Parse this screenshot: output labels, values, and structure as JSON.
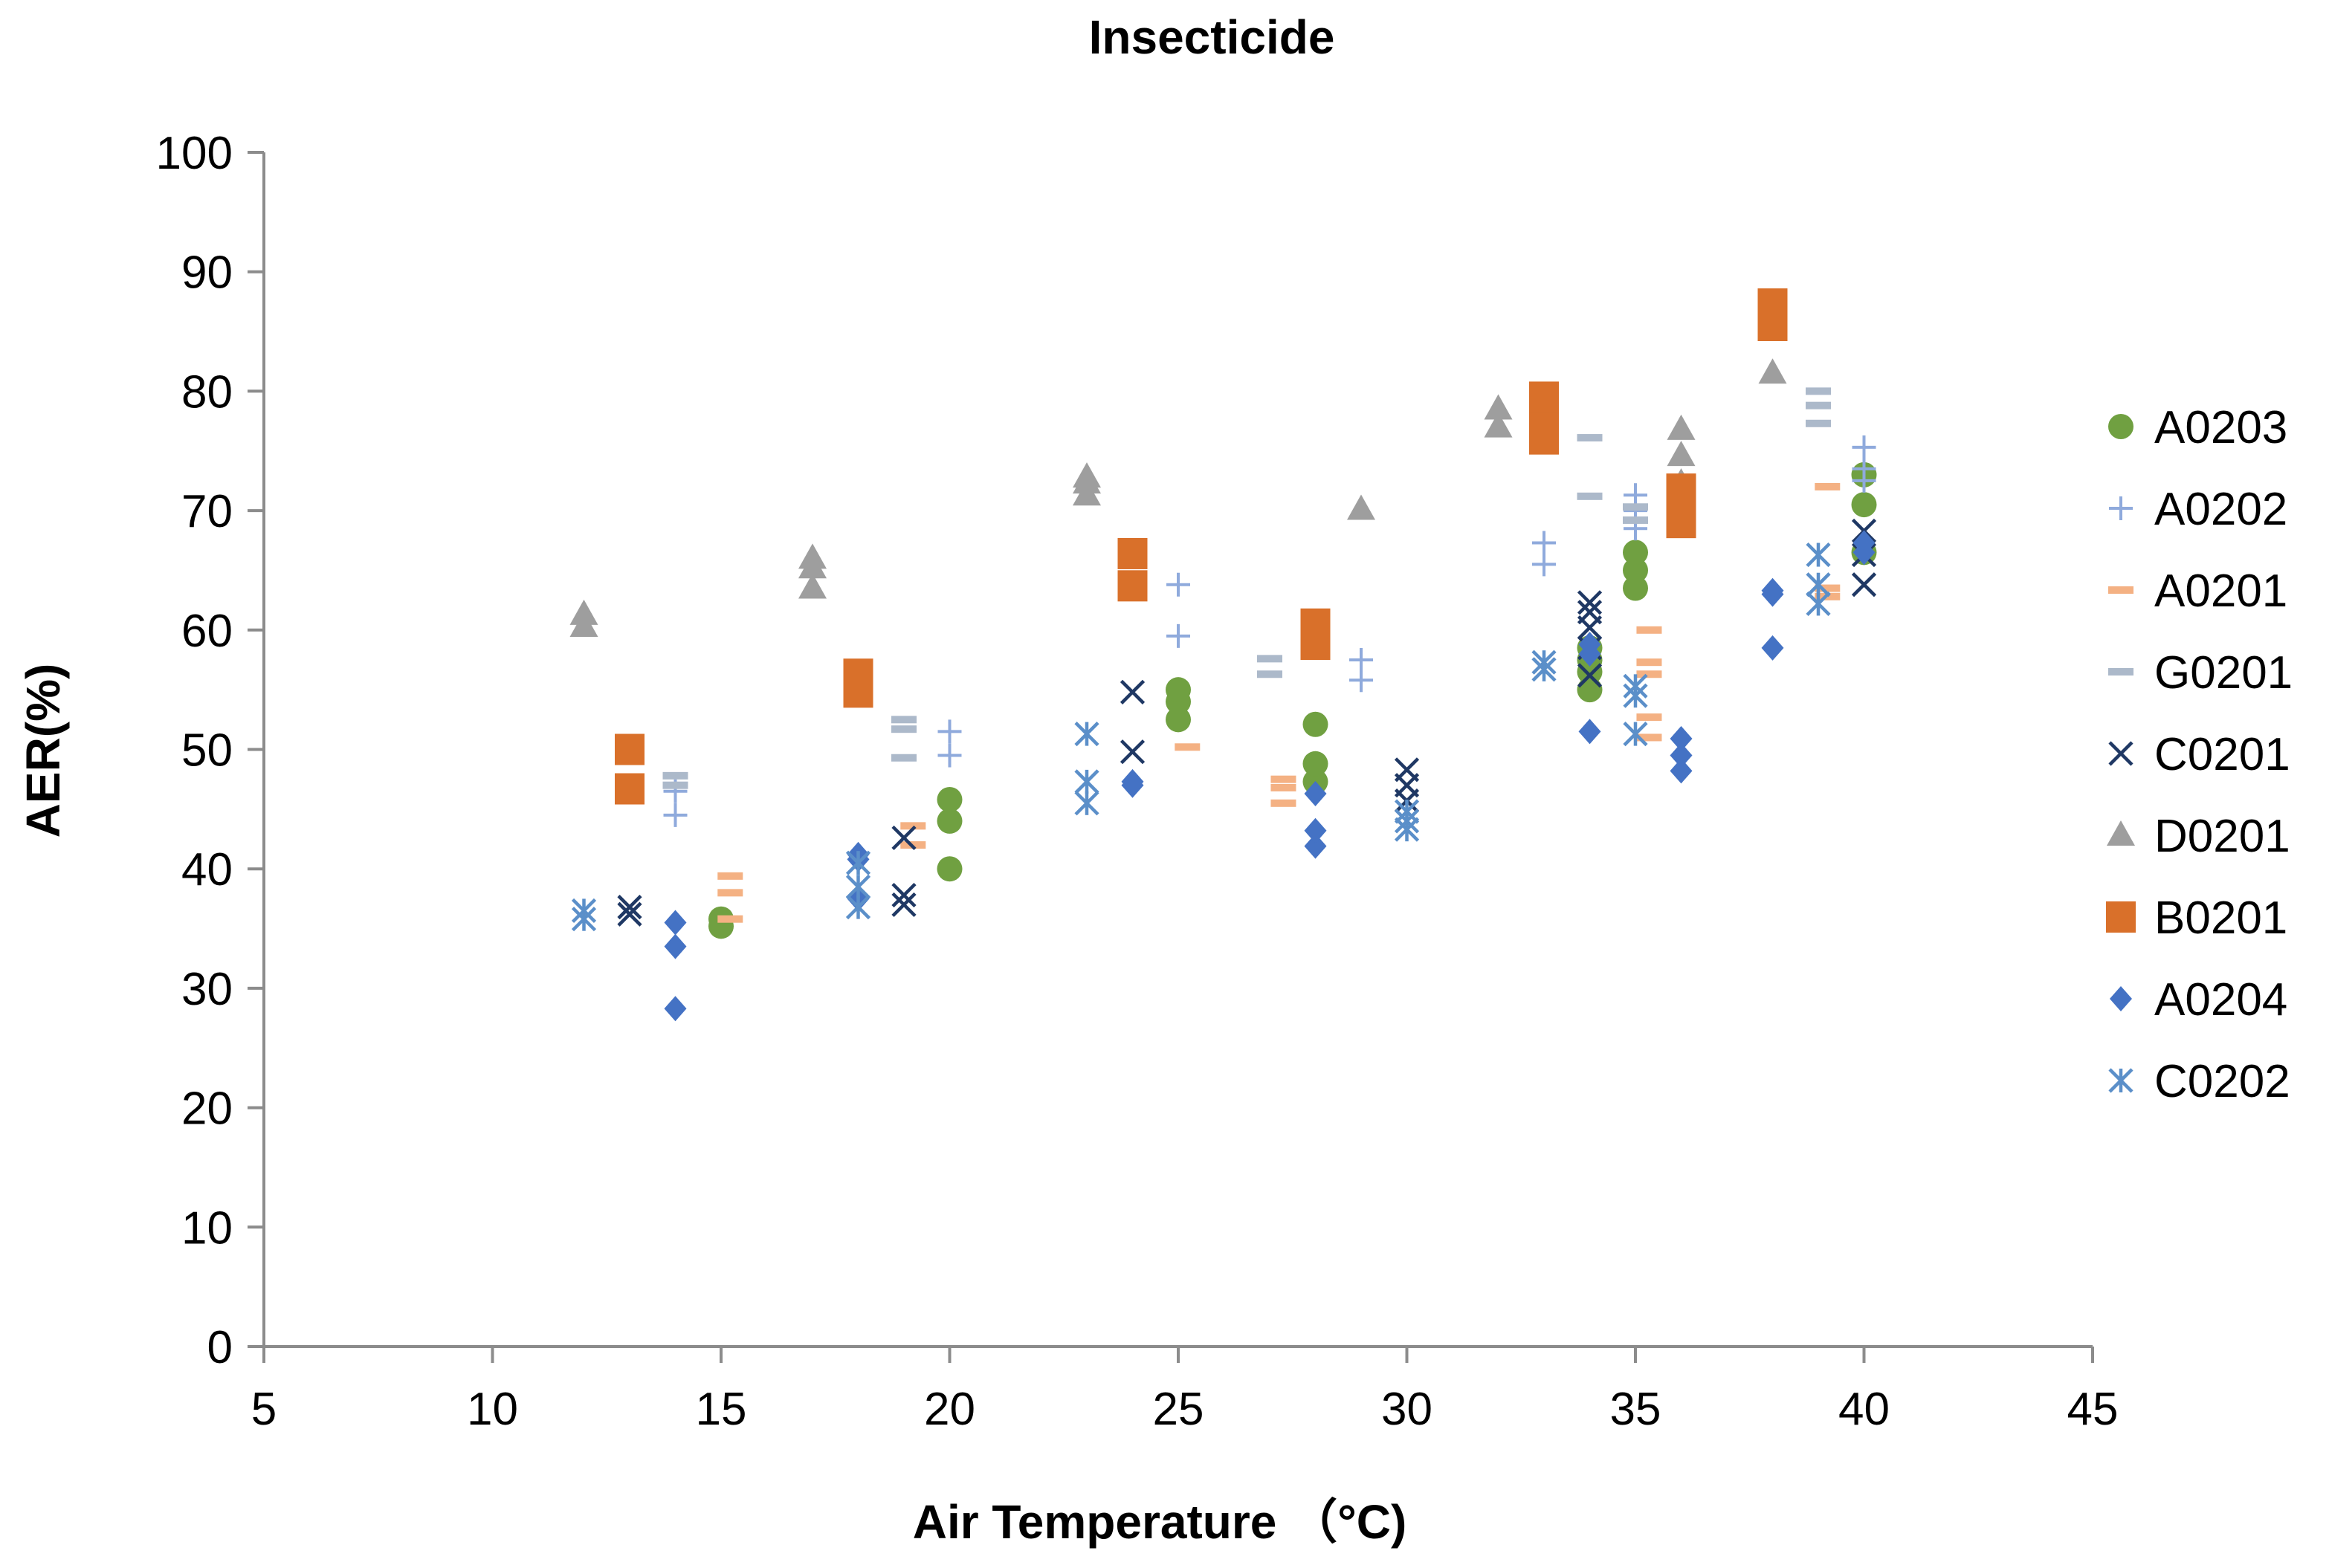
{
  "chart_data": {
    "type": "scatter",
    "title": "Insecticide",
    "xlabel": "Air Temperature （°C)",
    "ylabel": "AER(%)",
    "xlim": [
      5,
      45
    ],
    "ylim": [
      0,
      100
    ],
    "xticks": [
      5,
      10,
      15,
      20,
      25,
      30,
      35,
      40,
      45
    ],
    "yticks": [
      0,
      10,
      20,
      30,
      40,
      50,
      60,
      70,
      80,
      90,
      100
    ],
    "grid": false,
    "legend_position": "right",
    "series": [
      {
        "name": "A0203",
        "marker": "circle",
        "color": "#70a041",
        "points": [
          [
            15,
            35.2
          ],
          [
            15,
            35.8
          ],
          [
            20,
            40
          ],
          [
            20,
            44
          ],
          [
            20,
            45.8
          ],
          [
            25,
            52.5
          ],
          [
            25,
            54
          ],
          [
            25,
            55
          ],
          [
            28,
            47.3
          ],
          [
            28,
            48.8
          ],
          [
            28,
            52.1
          ],
          [
            34,
            55
          ],
          [
            34,
            56.5
          ],
          [
            34,
            57.5
          ],
          [
            34,
            58.5
          ],
          [
            35,
            63.5
          ],
          [
            35,
            65
          ],
          [
            35,
            66.5
          ],
          [
            40,
            66.5
          ],
          [
            40,
            70.5
          ],
          [
            40,
            73
          ]
        ]
      },
      {
        "name": "A0202",
        "marker": "plus",
        "color": "#8faadc",
        "points": [
          [
            14,
            44.5
          ],
          [
            14,
            46.5
          ],
          [
            20,
            49.5
          ],
          [
            20,
            51.5
          ],
          [
            25,
            59.5
          ],
          [
            25,
            63.8
          ],
          [
            29,
            55.8
          ],
          [
            29,
            57.5
          ],
          [
            33,
            65.5
          ],
          [
            33,
            67.3
          ],
          [
            35,
            68.5
          ],
          [
            35,
            70
          ],
          [
            35,
            71.3
          ],
          [
            40,
            72.5
          ],
          [
            40,
            73.5
          ],
          [
            40,
            75.3
          ]
        ]
      },
      {
        "name": "A0201",
        "marker": "dash",
        "color": "#f4b183",
        "points": [
          [
            15.2,
            35.8
          ],
          [
            15.2,
            38
          ],
          [
            15.2,
            39.4
          ],
          [
            19.2,
            42
          ],
          [
            19.2,
            43.6
          ],
          [
            25.2,
            50.2
          ],
          [
            27.3,
            45.5
          ],
          [
            27.3,
            46.8
          ],
          [
            27.3,
            47.5
          ],
          [
            35.3,
            51
          ],
          [
            35.3,
            52.7
          ],
          [
            35.3,
            56.3
          ],
          [
            35.3,
            57.3
          ],
          [
            35.3,
            60
          ],
          [
            39.2,
            62.8
          ],
          [
            39.2,
            63.5
          ],
          [
            39.2,
            72
          ]
        ]
      },
      {
        "name": "G0201",
        "marker": "dash",
        "color": "#acb9ca",
        "points": [
          [
            14,
            47
          ],
          [
            14,
            47.8
          ],
          [
            19,
            49.3
          ],
          [
            19,
            51.7
          ],
          [
            19,
            52.5
          ],
          [
            27,
            56.3
          ],
          [
            27,
            57.6
          ],
          [
            34,
            71.2
          ],
          [
            34,
            76.1
          ],
          [
            35,
            69.2
          ],
          [
            35,
            70.3
          ],
          [
            39,
            77.3
          ],
          [
            39,
            78.8
          ],
          [
            39,
            80
          ]
        ]
      },
      {
        "name": "C0201",
        "marker": "x",
        "color": "#1f3864",
        "points": [
          [
            13,
            36.2
          ],
          [
            13,
            36.8
          ],
          [
            19,
            37
          ],
          [
            19,
            37.8
          ],
          [
            19,
            42.6
          ],
          [
            24,
            49.8
          ],
          [
            24,
            54.8
          ],
          [
            30,
            45.7
          ],
          [
            30,
            47
          ],
          [
            30,
            48.3
          ],
          [
            34,
            56.2
          ],
          [
            34,
            58.5
          ],
          [
            34,
            60.2
          ],
          [
            34,
            61.5
          ],
          [
            34,
            62.3
          ],
          [
            40,
            63.8
          ],
          [
            40,
            66.3
          ],
          [
            40,
            68.3
          ]
        ]
      },
      {
        "name": "D0201",
        "marker": "triangle",
        "color": "#9e9e9e",
        "points": [
          [
            12,
            60.3
          ],
          [
            12,
            61.3
          ],
          [
            17,
            63.5
          ],
          [
            17,
            65.2
          ],
          [
            17,
            66
          ],
          [
            23,
            71.3
          ],
          [
            23,
            72.3
          ],
          [
            23,
            72.8
          ],
          [
            29,
            70.1
          ],
          [
            32,
            77
          ],
          [
            32,
            78.5
          ],
          [
            36,
            72.3
          ],
          [
            36,
            74.6
          ],
          [
            36,
            76.8
          ],
          [
            38,
            81.5
          ]
        ]
      },
      {
        "name": "B0201",
        "marker": "square",
        "color": "#d9702a",
        "points": [
          [
            13,
            46.7
          ],
          [
            13,
            50
          ],
          [
            18,
            54.8
          ],
          [
            18,
            56.3
          ],
          [
            24,
            63.7
          ],
          [
            24,
            66.4
          ],
          [
            28,
            58.8
          ],
          [
            28,
            60.5
          ],
          [
            33,
            76
          ],
          [
            33,
            78
          ],
          [
            33,
            79.5
          ],
          [
            36,
            69
          ],
          [
            36,
            70.5
          ],
          [
            36,
            71.8
          ],
          [
            38,
            85.5
          ],
          [
            38,
            87.3
          ]
        ]
      },
      {
        "name": "A0204",
        "marker": "diamond",
        "color": "#4472c4",
        "points": [
          [
            14,
            28.3
          ],
          [
            14,
            33.5
          ],
          [
            14,
            35.5
          ],
          [
            18,
            37.5
          ],
          [
            18,
            40.8
          ],
          [
            18,
            41.2
          ],
          [
            24,
            47
          ],
          [
            24,
            47.3
          ],
          [
            28,
            41.9
          ],
          [
            28,
            43.2
          ],
          [
            28,
            46.3
          ],
          [
            34,
            51.5
          ],
          [
            34,
            58
          ],
          [
            34,
            58.8
          ],
          [
            36,
            48.2
          ],
          [
            36,
            49.5
          ],
          [
            36,
            50.9
          ],
          [
            38,
            58.5
          ],
          [
            38,
            63
          ],
          [
            38,
            63.3
          ],
          [
            40,
            66.5
          ],
          [
            40,
            67.3
          ]
        ]
      },
      {
        "name": "C0202",
        "marker": "asterisk",
        "color": "#5b8fc9",
        "points": [
          [
            12,
            35.8
          ],
          [
            12,
            36.5
          ],
          [
            18,
            36.8
          ],
          [
            18,
            38.5
          ],
          [
            18,
            40.5
          ],
          [
            23,
            45.5
          ],
          [
            23,
            47.3
          ],
          [
            23,
            51.3
          ],
          [
            30,
            43.3
          ],
          [
            30,
            44
          ],
          [
            30,
            44.8
          ],
          [
            33,
            56.7
          ],
          [
            33,
            57.3
          ],
          [
            35,
            51.3
          ],
          [
            35,
            54.5
          ],
          [
            35,
            55.3
          ],
          [
            39,
            62.2
          ],
          [
            39,
            63.8
          ],
          [
            39,
            66.3
          ]
        ]
      }
    ]
  }
}
